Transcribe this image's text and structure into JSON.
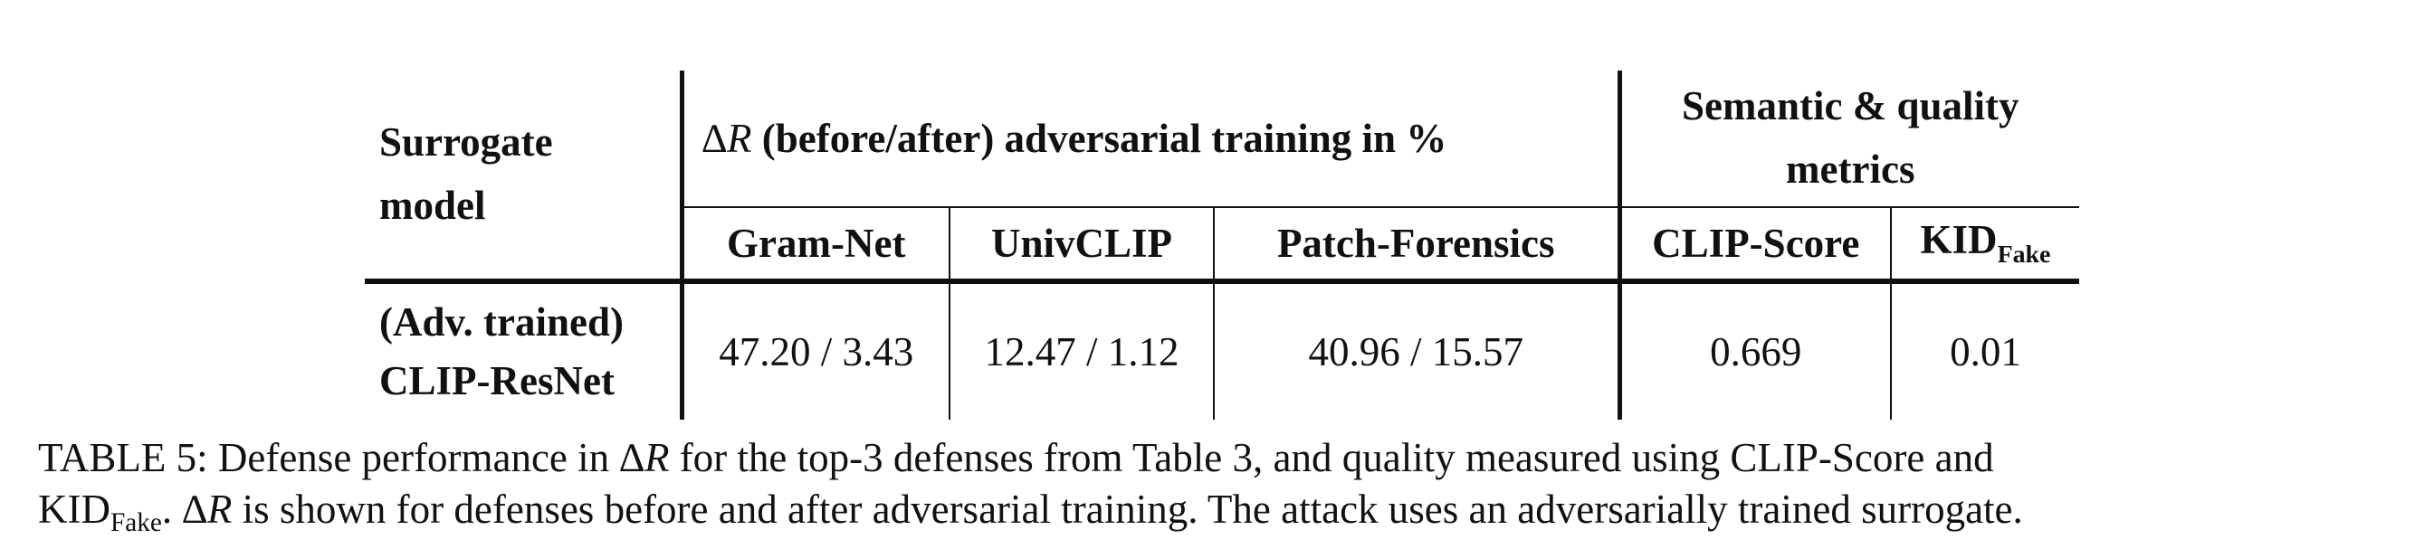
{
  "table": {
    "header": {
      "surrogate_model": "Surrogate model",
      "delta_r_group": "(before/after) adversarial training in %",
      "delta_symbol": "∆",
      "r_symbol": "R",
      "semantic_group": "Semantic & quality metrics",
      "columns": [
        "Gram-Net",
        "UnivCLIP",
        "Patch-Forensics",
        "CLIP-Score"
      ],
      "kid_label": "KID",
      "kid_subscript": "Fake"
    },
    "rows": [
      {
        "model_line1": "(Adv. trained)",
        "model_line2": "CLIP-ResNet",
        "gram_net": "47.20 / 3.43",
        "univclip": "12.47 / 1.12",
        "patch_forensics": "40.96 / 15.57",
        "clip_score": "0.669",
        "kid_fake": "0.01"
      }
    ]
  },
  "caption": {
    "line1_a": "TABLE 5: Defense performance in ∆",
    "line1_r": "R",
    "line1_b": " for the top-3 defenses from Table 3, and quality measured using CLIP-Score and",
    "line2_kid": "KID",
    "line2_sub": "Fake",
    "line2_a": ". ∆",
    "line2_r": "R",
    "line2_b": " is shown for defenses before and after adversarial training. The attack uses an adversarially trained surrogate."
  }
}
